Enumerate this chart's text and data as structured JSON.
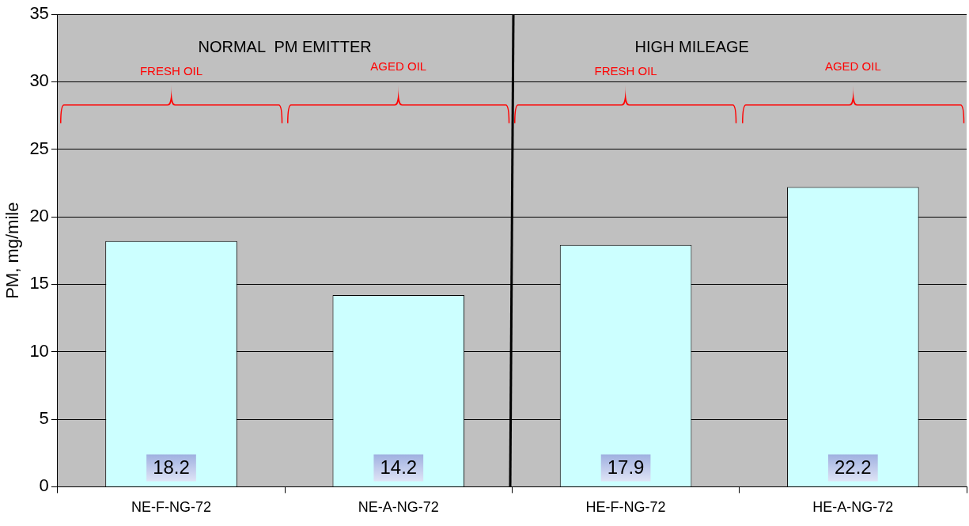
{
  "chart_data": {
    "type": "bar",
    "ylabel": "PM, mg/mile",
    "categories": [
      "NE-F-NG-72",
      "NE-A-NG-72",
      "HE-F-NG-72",
      "HE-A-NG-72"
    ],
    "values": [
      18.2,
      14.2,
      17.9,
      22.2
    ],
    "color": "#ccffff",
    "ylim": [
      0,
      35
    ],
    "yticks": [
      0,
      5,
      10,
      15,
      20,
      25,
      30,
      35
    ],
    "grid": "y",
    "data_labels": true,
    "annotations": [
      "NORMAL  PM EMITTER",
      "HIGH MILEAGE",
      "FRESH OIL",
      "AGED OIL",
      "FRESH OIL",
      "AGED OIL"
    ]
  }
}
